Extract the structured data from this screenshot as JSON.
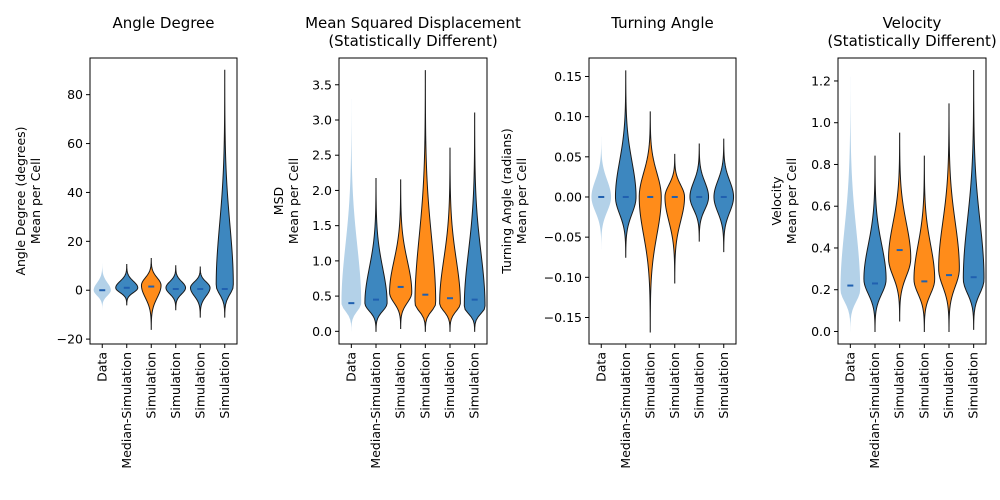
{
  "colors": {
    "data": "#b3d1e8",
    "orange": "#ff8c1a",
    "blue": "#3d87bf",
    "median": "#2060b0",
    "outline": "#1a1a1a"
  },
  "chart_data": [
    {
      "type": "violin",
      "title": [
        "Angle Degree"
      ],
      "ylabel": [
        "Angle Degree (degrees)",
        "Mean per Cell"
      ],
      "ylim": [
        -22,
        95
      ],
      "yticks": [
        -20,
        0,
        20,
        40,
        60,
        80
      ],
      "categories": [
        "Data",
        "Median-Simulation",
        "Simulation",
        "Simulation",
        "Simulation",
        "Simulation"
      ],
      "violins": [
        {
          "color": "data",
          "min": -8,
          "max": 11,
          "median": 0,
          "peak": 0,
          "width": 0.35
        },
        {
          "color": "blue",
          "min": -6,
          "max": 10.5,
          "median": 1,
          "peak": 1,
          "width": 0.45
        },
        {
          "color": "orange",
          "min": -16,
          "max": 13,
          "median": 1.5,
          "peak": 2,
          "width": 0.4
        },
        {
          "color": "blue",
          "min": -8,
          "max": 10,
          "median": 0.5,
          "peak": 1,
          "width": 0.4
        },
        {
          "color": "blue",
          "min": -11,
          "max": 9.5,
          "median": 0.5,
          "peak": 1,
          "width": 0.4
        },
        {
          "color": "blue",
          "min": -11,
          "max": 90,
          "median": 0.5,
          "peak": 2,
          "width": 0.35
        }
      ]
    },
    {
      "type": "violin",
      "title": [
        "Mean Squared Displacement",
        "(Statistically Different)"
      ],
      "ylabel": [
        "MSD",
        "Mean per Cell"
      ],
      "ylim": [
        -0.18,
        3.88
      ],
      "yticks": [
        0.0,
        0.5,
        1.0,
        1.5,
        2.0,
        2.5,
        3.0,
        3.5
      ],
      "categories": [
        "Data",
        "Median-Simulation",
        "Simulation",
        "Simulation",
        "Simulation",
        "Simulation"
      ],
      "violins": [
        {
          "color": "data",
          "min": 0.0,
          "max": 3.3,
          "median": 0.4,
          "peak": 0.4,
          "width": 0.4
        },
        {
          "color": "blue",
          "min": 0.0,
          "max": 2.17,
          "median": 0.45,
          "peak": 0.4,
          "width": 0.45
        },
        {
          "color": "orange",
          "min": 0.04,
          "max": 2.15,
          "median": 0.63,
          "peak": 0.55,
          "width": 0.45
        },
        {
          "color": "orange",
          "min": 0.0,
          "max": 3.7,
          "median": 0.52,
          "peak": 0.4,
          "width": 0.42
        },
        {
          "color": "orange",
          "min": 0.0,
          "max": 2.6,
          "median": 0.47,
          "peak": 0.4,
          "width": 0.42
        },
        {
          "color": "blue",
          "min": 0.0,
          "max": 3.1,
          "median": 0.45,
          "peak": 0.35,
          "width": 0.42
        }
      ]
    },
    {
      "type": "violin",
      "title": [
        "Turning Angle"
      ],
      "ylabel": [
        "Turning Angle (radians)",
        "Mean per Cell"
      ],
      "ylim": [
        -0.183,
        0.173
      ],
      "yticks": [
        -0.15,
        -0.1,
        -0.05,
        0.0,
        0.05,
        0.1,
        0.15
      ],
      "categories": [
        "Data",
        "Median-Simulation",
        "Simulation",
        "Simulation",
        "Simulation",
        "Simulation"
      ],
      "violins": [
        {
          "color": "data",
          "min": -0.065,
          "max": 0.075,
          "median": 0.0,
          "peak": 0.0,
          "width": 0.4
        },
        {
          "color": "blue",
          "min": -0.075,
          "max": 0.157,
          "median": 0.0,
          "peak": 0.0,
          "width": 0.42
        },
        {
          "color": "orange",
          "min": -0.168,
          "max": 0.106,
          "median": 0.0,
          "peak": 0.0,
          "width": 0.45
        },
        {
          "color": "orange",
          "min": -0.107,
          "max": 0.053,
          "median": 0.0,
          "peak": 0.0,
          "width": 0.4
        },
        {
          "color": "blue",
          "min": -0.055,
          "max": 0.066,
          "median": 0.0,
          "peak": 0.0,
          "width": 0.38
        },
        {
          "color": "blue",
          "min": -0.068,
          "max": 0.072,
          "median": 0.0,
          "peak": 0.0,
          "width": 0.4
        }
      ]
    },
    {
      "type": "violin",
      "title": [
        "Velocity",
        "(Statistically Different)"
      ],
      "ylabel": [
        "Velocity",
        "Mean per Cell"
      ],
      "ylim": [
        -0.06,
        1.31
      ],
      "yticks": [
        0.0,
        0.2,
        0.4,
        0.6,
        0.8,
        1.0,
        1.2
      ],
      "categories": [
        "Data",
        "Median-Simulation",
        "Simulation",
        "Simulation",
        "Simulation",
        "Simulation"
      ],
      "violins": [
        {
          "color": "data",
          "min": 0.0,
          "max": 1.22,
          "median": 0.22,
          "peak": 0.2,
          "width": 0.4
        },
        {
          "color": "blue",
          "min": 0.0,
          "max": 0.84,
          "median": 0.23,
          "peak": 0.25,
          "width": 0.45
        },
        {
          "color": "orange",
          "min": 0.05,
          "max": 0.95,
          "median": 0.39,
          "peak": 0.35,
          "width": 0.45
        },
        {
          "color": "orange",
          "min": 0.0,
          "max": 0.84,
          "median": 0.24,
          "peak": 0.25,
          "width": 0.42
        },
        {
          "color": "orange",
          "min": 0.0,
          "max": 1.09,
          "median": 0.27,
          "peak": 0.3,
          "width": 0.42
        },
        {
          "color": "blue",
          "min": 0.01,
          "max": 1.25,
          "median": 0.26,
          "peak": 0.25,
          "width": 0.42
        }
      ]
    }
  ]
}
